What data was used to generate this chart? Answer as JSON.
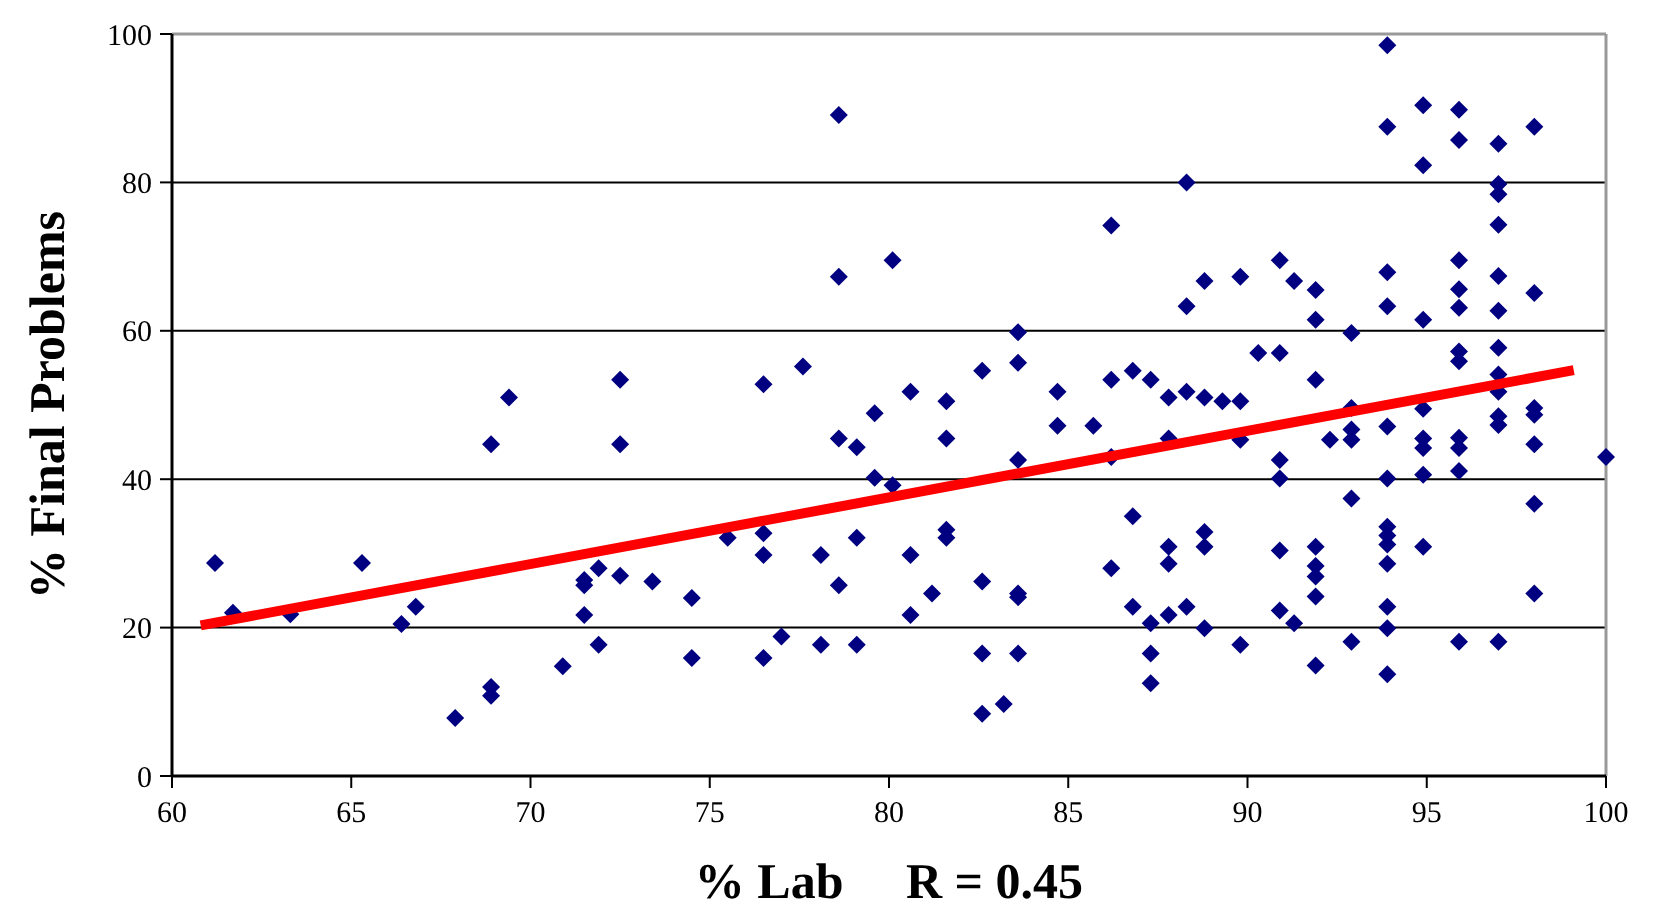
{
  "chart_data": {
    "type": "scatter",
    "xlabel": "% Lab     R = 0.45",
    "ylabel": "% Final Problems",
    "xlim": [
      60,
      100
    ],
    "ylim": [
      0,
      100
    ],
    "xticks": [
      60,
      65,
      70,
      75,
      80,
      85,
      90,
      95,
      100
    ],
    "yticks": [
      0,
      20,
      40,
      60,
      80,
      100
    ],
    "grid": "y",
    "series": [
      {
        "marker": "diamond",
        "color": "#000080",
        "x": [
          61.2,
          61.7,
          63.3,
          65.3,
          66.4,
          66.8,
          67.9,
          68.9,
          68.9,
          68.9,
          69.4,
          70.9,
          71.5,
          71.5,
          71.5,
          71.9,
          71.9,
          72.5,
          72.5,
          72.5,
          73.4,
          74.5,
          74.5,
          75.5,
          76.5,
          76.5,
          76.5,
          76.5,
          77.0,
          77.6,
          78.1,
          78.1,
          78.6,
          78.6,
          78.6,
          78.6,
          79.1,
          79.1,
          79.1,
          79.6,
          79.6,
          80.1,
          80.1,
          80.6,
          80.6,
          80.6,
          81.2,
          81.6,
          81.6,
          81.6,
          81.6,
          82.6,
          82.6,
          82.6,
          82.6,
          83.2,
          83.6,
          83.6,
          83.6,
          83.6,
          83.6,
          83.6,
          84.7,
          84.7,
          85.7,
          86.2,
          86.2,
          86.2,
          86.2,
          86.8,
          86.8,
          86.8,
          87.3,
          87.3,
          87.3,
          87.3,
          87.8,
          87.8,
          87.8,
          87.8,
          87.8,
          88.3,
          88.3,
          88.3,
          88.3,
          88.8,
          88.8,
          88.8,
          88.8,
          88.8,
          89.3,
          89.8,
          89.8,
          89.8,
          89.8,
          90.3,
          90.9,
          90.9,
          90.9,
          90.9,
          90.9,
          90.9,
          91.3,
          91.3,
          91.9,
          91.9,
          91.9,
          91.9,
          91.9,
          91.9,
          91.9,
          91.9,
          92.3,
          92.9,
          92.9,
          92.9,
          92.9,
          92.9,
          92.9,
          93.9,
          93.9,
          93.9,
          93.9,
          93.9,
          93.9,
          93.9,
          93.9,
          93.9,
          93.9,
          93.9,
          93.9,
          93.9,
          94.9,
          94.9,
          94.9,
          94.9,
          94.9,
          94.9,
          94.9,
          94.9,
          95.9,
          95.9,
          95.9,
          95.9,
          95.9,
          95.9,
          95.9,
          95.9,
          95.9,
          95.9,
          95.9,
          97.0,
          97.0,
          97.0,
          97.0,
          97.0,
          97.0,
          97.0,
          97.0,
          97.0,
          97.0,
          97.0,
          97.0,
          98.0,
          98.0,
          98.0,
          98.0,
          98.0,
          98.0,
          98.0,
          100.0
        ],
        "values": [
          28.7,
          22.0,
          21.8,
          28.7,
          20.5,
          22.8,
          7.8,
          12.0,
          10.8,
          44.7,
          51.0,
          14.8,
          26.4,
          25.7,
          21.7,
          28.0,
          17.7,
          53.4,
          44.7,
          27.0,
          26.2,
          24.0,
          15.9,
          32.1,
          52.8,
          32.7,
          29.8,
          15.9,
          18.8,
          55.2,
          29.8,
          17.7,
          89.1,
          67.3,
          45.5,
          25.7,
          44.3,
          32.1,
          17.7,
          48.9,
          40.2,
          69.5,
          39.2,
          51.8,
          29.8,
          21.7,
          24.6,
          50.5,
          45.5,
          33.2,
          32.1,
          54.6,
          26.2,
          16.5,
          8.4,
          9.7,
          59.8,
          55.7,
          42.6,
          24.6,
          24.1,
          16.5,
          51.8,
          47.2,
          47.2,
          74.2,
          53.4,
          43.0,
          28.0,
          54.6,
          35.0,
          22.8,
          53.4,
          20.6,
          16.5,
          12.5,
          51.0,
          45.5,
          30.9,
          28.6,
          21.7,
          80.0,
          63.3,
          51.8,
          22.8,
          66.7,
          51.0,
          32.9,
          30.9,
          19.9,
          50.5,
          67.3,
          50.5,
          45.3,
          17.7,
          57.0,
          69.5,
          57.0,
          42.6,
          40.1,
          30.4,
          22.3,
          66.7,
          20.6,
          65.5,
          61.5,
          53.4,
          30.9,
          28.3,
          26.9,
          24.2,
          14.9,
          45.3,
          59.7,
          49.6,
          46.7,
          45.3,
          37.4,
          18.1,
          98.5,
          87.5,
          67.9,
          63.3,
          47.1,
          40.1,
          33.6,
          32.4,
          31.2,
          28.6,
          22.8,
          19.9,
          13.7,
          90.4,
          82.3,
          61.5,
          49.5,
          45.5,
          44.2,
          40.6,
          30.9,
          89.8,
          85.7,
          69.5,
          65.6,
          63.1,
          57.2,
          55.9,
          45.6,
          44.2,
          41.1,
          18.1,
          85.2,
          79.8,
          78.4,
          74.3,
          67.4,
          62.7,
          57.7,
          54.1,
          51.8,
          48.5,
          47.3,
          18.1,
          87.5,
          65.1,
          49.6,
          48.7,
          44.7,
          36.7,
          24.6,
          43.0
        ]
      },
      {
        "type": "line",
        "color": "#ff0000",
        "x": [
          60.8,
          99.1
        ],
        "values": [
          20.3,
          54.7
        ]
      }
    ]
  }
}
